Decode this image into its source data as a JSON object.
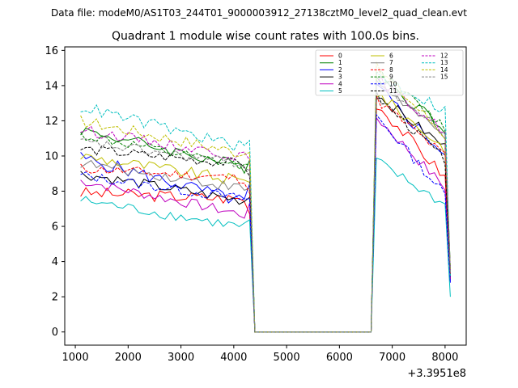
{
  "chart_data": {
    "type": "line",
    "suptitle": "Data file: modeM0/AS1T03_244T01_9000003912_27138cztM0_level2_quad_clean.evt",
    "title": "Quadrant 1 module wise count rates with 100.0s bins.",
    "xlabel": "",
    "ylabel": "",
    "x_offset_label": "+3.3951e8",
    "xlim": [
      800,
      8400
    ],
    "ylim": [
      -0.75,
      16.2
    ],
    "xticks": [
      1000,
      2000,
      3000,
      4000,
      5000,
      6000,
      7000,
      8000
    ],
    "xtick_labels": [
      "1000",
      "2000",
      "3000",
      "4000",
      "5000",
      "6000",
      "7000",
      "8000"
    ],
    "yticks": [
      0,
      2,
      4,
      6,
      8,
      10,
      12,
      14,
      16
    ],
    "ytick_labels": [
      "0",
      "2",
      "4",
      "6",
      "8",
      "10",
      "12",
      "14",
      "16"
    ],
    "grid": false,
    "legend_position": "top-right",
    "segments": {
      "seg1_start": 1100,
      "seg1_end": 4300,
      "drop_to": 4400,
      "gap_end": 6600,
      "seg2_start": 6700,
      "seg2_end": 8000,
      "final": 8100,
      "step": 100
    },
    "series": [
      {
        "name": "0",
        "color": "#ff0000",
        "dash": "solid",
        "level1": 7.9,
        "slope1": -0.35,
        "level2": 13.0,
        "slope2": -4.2,
        "final": 3.0,
        "noise": 0.35
      },
      {
        "name": "1",
        "color": "#008000",
        "dash": "solid",
        "level1": 11.5,
        "slope1": -2.2,
        "level2": 14.6,
        "slope2": -3.0,
        "final": 3.5,
        "noise": 0.35
      },
      {
        "name": "2",
        "color": "#0000ff",
        "dash": "solid",
        "level1": 9.9,
        "slope1": -2.6,
        "level2": 13.9,
        "slope2": -3.8,
        "final": 2.8,
        "noise": 0.4
      },
      {
        "name": "3",
        "color": "#000000",
        "dash": "solid",
        "level1": 9.0,
        "slope1": -1.6,
        "level2": 13.5,
        "slope2": -3.0,
        "final": 3.0,
        "noise": 0.3
      },
      {
        "name": "4",
        "color": "#bf00bf",
        "dash": "solid",
        "level1": 8.6,
        "slope1": -2.0,
        "level2": 12.2,
        "slope2": -4.0,
        "final": 3.0,
        "noise": 0.3
      },
      {
        "name": "5",
        "color": "#00bfbf",
        "dash": "solid",
        "level1": 7.5,
        "slope1": -1.6,
        "level2": 9.7,
        "slope2": -2.5,
        "final": 2.0,
        "noise": 0.3
      },
      {
        "name": "6",
        "color": "#bfbf00",
        "dash": "solid",
        "level1": 10.0,
        "slope1": -1.5,
        "level2": 13.6,
        "slope2": -3.2,
        "final": 3.5,
        "noise": 0.35
      },
      {
        "name": "7",
        "color": "#808080",
        "dash": "solid",
        "level1": 9.6,
        "slope1": -1.5,
        "level2": 14.3,
        "slope2": -3.3,
        "final": 3.5,
        "noise": 0.3
      },
      {
        "name": "8",
        "color": "#ff0000",
        "dash": "dashed",
        "level1": 9.3,
        "slope1": -0.6,
        "level2": 13.2,
        "slope2": -3.2,
        "final": 3.3,
        "noise": 0.3
      },
      {
        "name": "9",
        "color": "#008000",
        "dash": "dashed",
        "level1": 11.2,
        "slope1": -1.9,
        "level2": 14.9,
        "slope2": -3.3,
        "final": 3.6,
        "noise": 0.3
      },
      {
        "name": "10",
        "color": "#0000ff",
        "dash": "dashed",
        "level1": 8.9,
        "slope1": -1.4,
        "level2": 12.3,
        "slope2": -4.5,
        "final": 2.8,
        "noise": 0.3
      },
      {
        "name": "11",
        "color": "#000000",
        "dash": "dashed",
        "level1": 10.4,
        "slope1": -0.9,
        "level2": 13.4,
        "slope2": -3.6,
        "final": 3.2,
        "noise": 0.3
      },
      {
        "name": "12",
        "color": "#bf00bf",
        "dash": "dashed",
        "level1": 11.5,
        "slope1": -1.6,
        "level2": 14.4,
        "slope2": -3.0,
        "final": 3.5,
        "noise": 0.3
      },
      {
        "name": "13",
        "color": "#00bfbf",
        "dash": "dashed",
        "level1": 12.8,
        "slope1": -2.4,
        "level2": 14.6,
        "slope2": -2.0,
        "final": 3.2,
        "noise": 0.35
      },
      {
        "name": "14",
        "color": "#bfbf00",
        "dash": "dashed",
        "level1": 12.0,
        "slope1": -1.9,
        "level2": 15.0,
        "slope2": -3.8,
        "final": 3.5,
        "noise": 0.35
      },
      {
        "name": "15",
        "color": "#808080",
        "dash": "dashed",
        "level1": 10.8,
        "slope1": -1.3,
        "level2": 14.4,
        "slope2": -3.2,
        "final": 3.4,
        "noise": 0.3
      }
    ]
  }
}
